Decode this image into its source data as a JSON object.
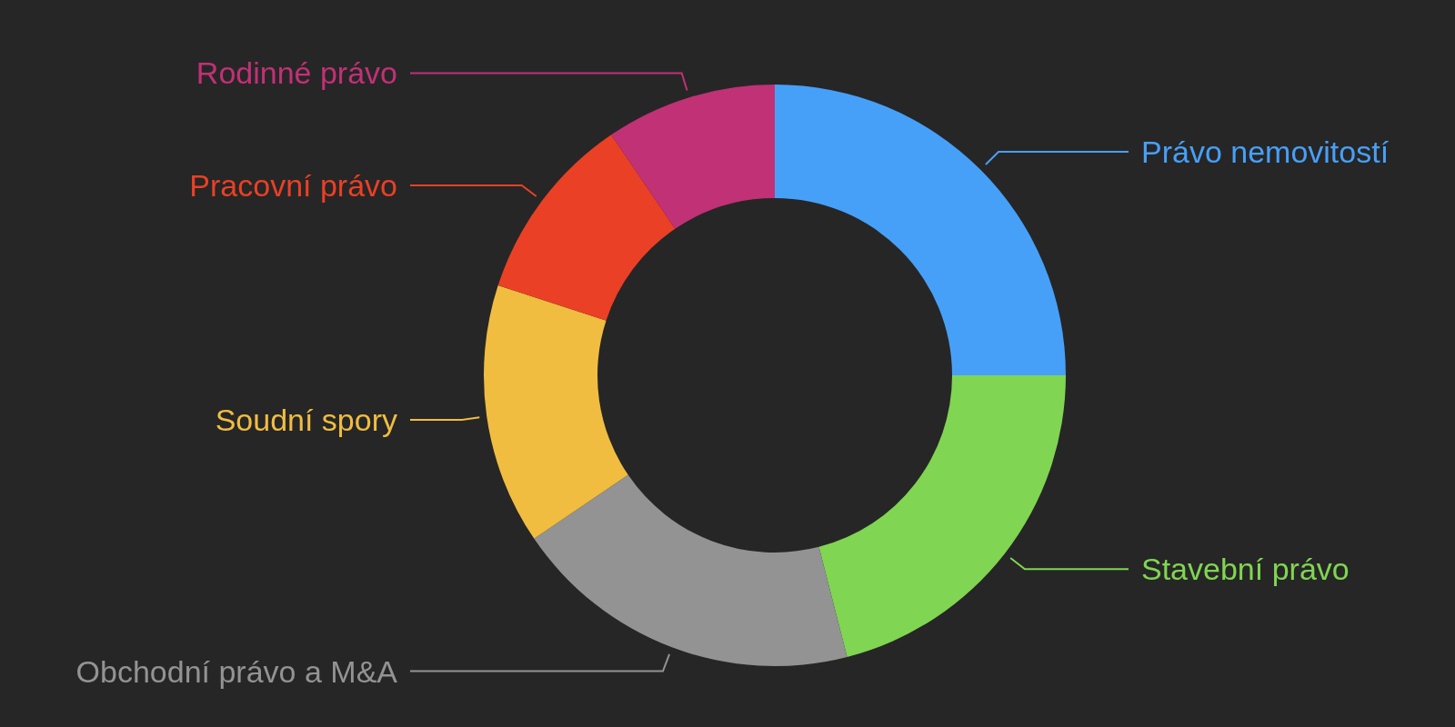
{
  "chart_data": {
    "type": "donut",
    "categories": [
      "Právo nemovitostí",
      "Stavební právo",
      "Obchodní právo a M&A",
      "Soudní spory",
      "Pracovní právo",
      "Rodinné právo"
    ],
    "values": [
      25,
      21,
      19.5,
      14.5,
      10.5,
      9.5
    ],
    "colors": [
      "#47a0f8",
      "#80d552",
      "#939393",
      "#f0bd41",
      "#ea4025",
      "#c13176"
    ]
  }
}
